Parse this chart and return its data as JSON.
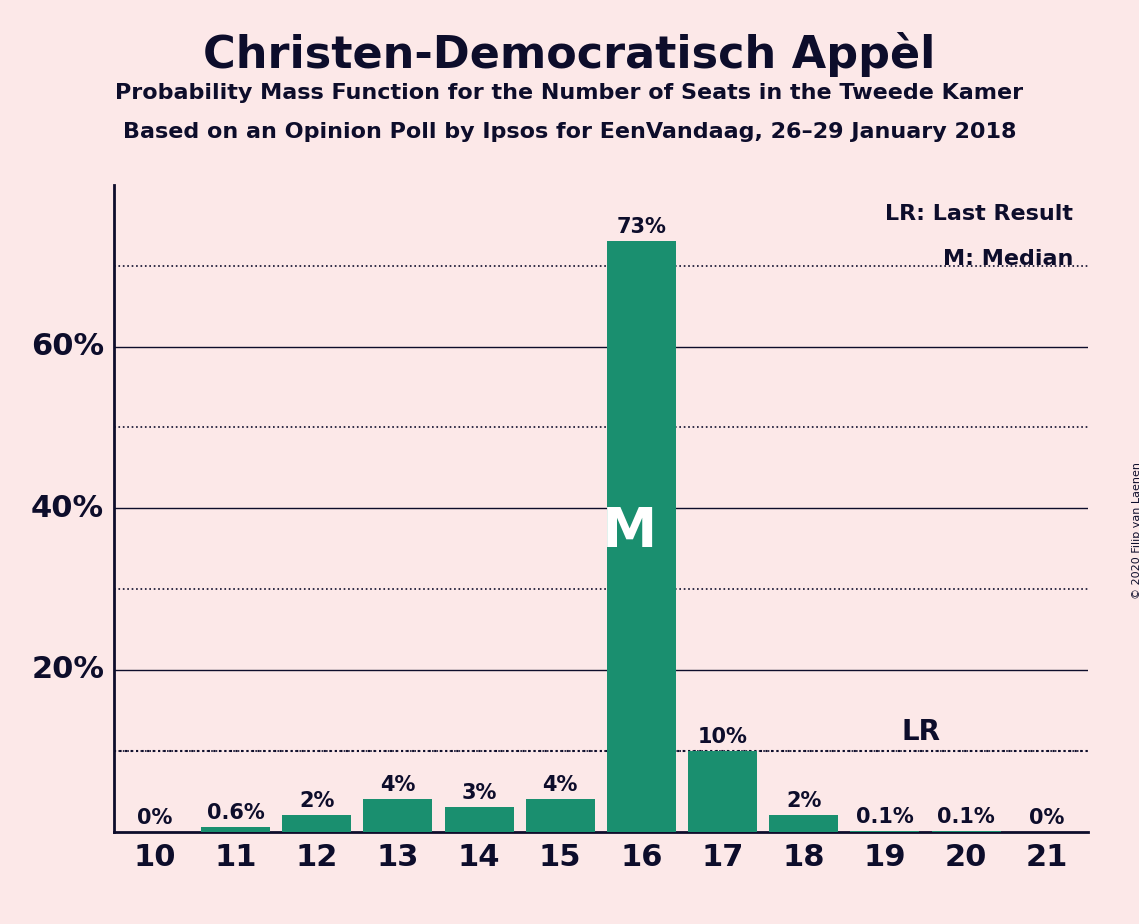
{
  "title": "Christen-Democratisch Appèl",
  "subtitle1": "Probability Mass Function for the Number of Seats in the Tweede Kamer",
  "subtitle2": "Based on an Opinion Poll by Ipsos for EenVandaag, 26–29 January 2018",
  "copyright": "© 2020 Filip van Laenen",
  "seats": [
    10,
    11,
    12,
    13,
    14,
    15,
    16,
    17,
    18,
    19,
    20,
    21
  ],
  "probabilities": [
    0.0,
    0.006,
    0.02,
    0.04,
    0.03,
    0.04,
    0.73,
    0.1,
    0.02,
    0.001,
    0.001,
    0.0
  ],
  "bar_color": "#1a8f6f",
  "background_color": "#fce8e8",
  "text_color": "#0d0d2b",
  "median_seat": 16,
  "last_result_prob": 0.1,
  "solid_lines": [
    0.2,
    0.4,
    0.6
  ],
  "dotted_lines": [
    0.1,
    0.3,
    0.5,
    0.7
  ],
  "ytick_positions": [
    0.2,
    0.4,
    0.6
  ],
  "ytick_labels": [
    "20%",
    "40%",
    "60%"
  ],
  "xlim": [
    9.5,
    21.5
  ],
  "ylim": [
    0,
    0.8
  ],
  "bar_labels": [
    "0%",
    "0.6%",
    "2%",
    "4%",
    "3%",
    "4%",
    "73%",
    "10%",
    "2%",
    "0.1%",
    "0.1%",
    "0%"
  ]
}
